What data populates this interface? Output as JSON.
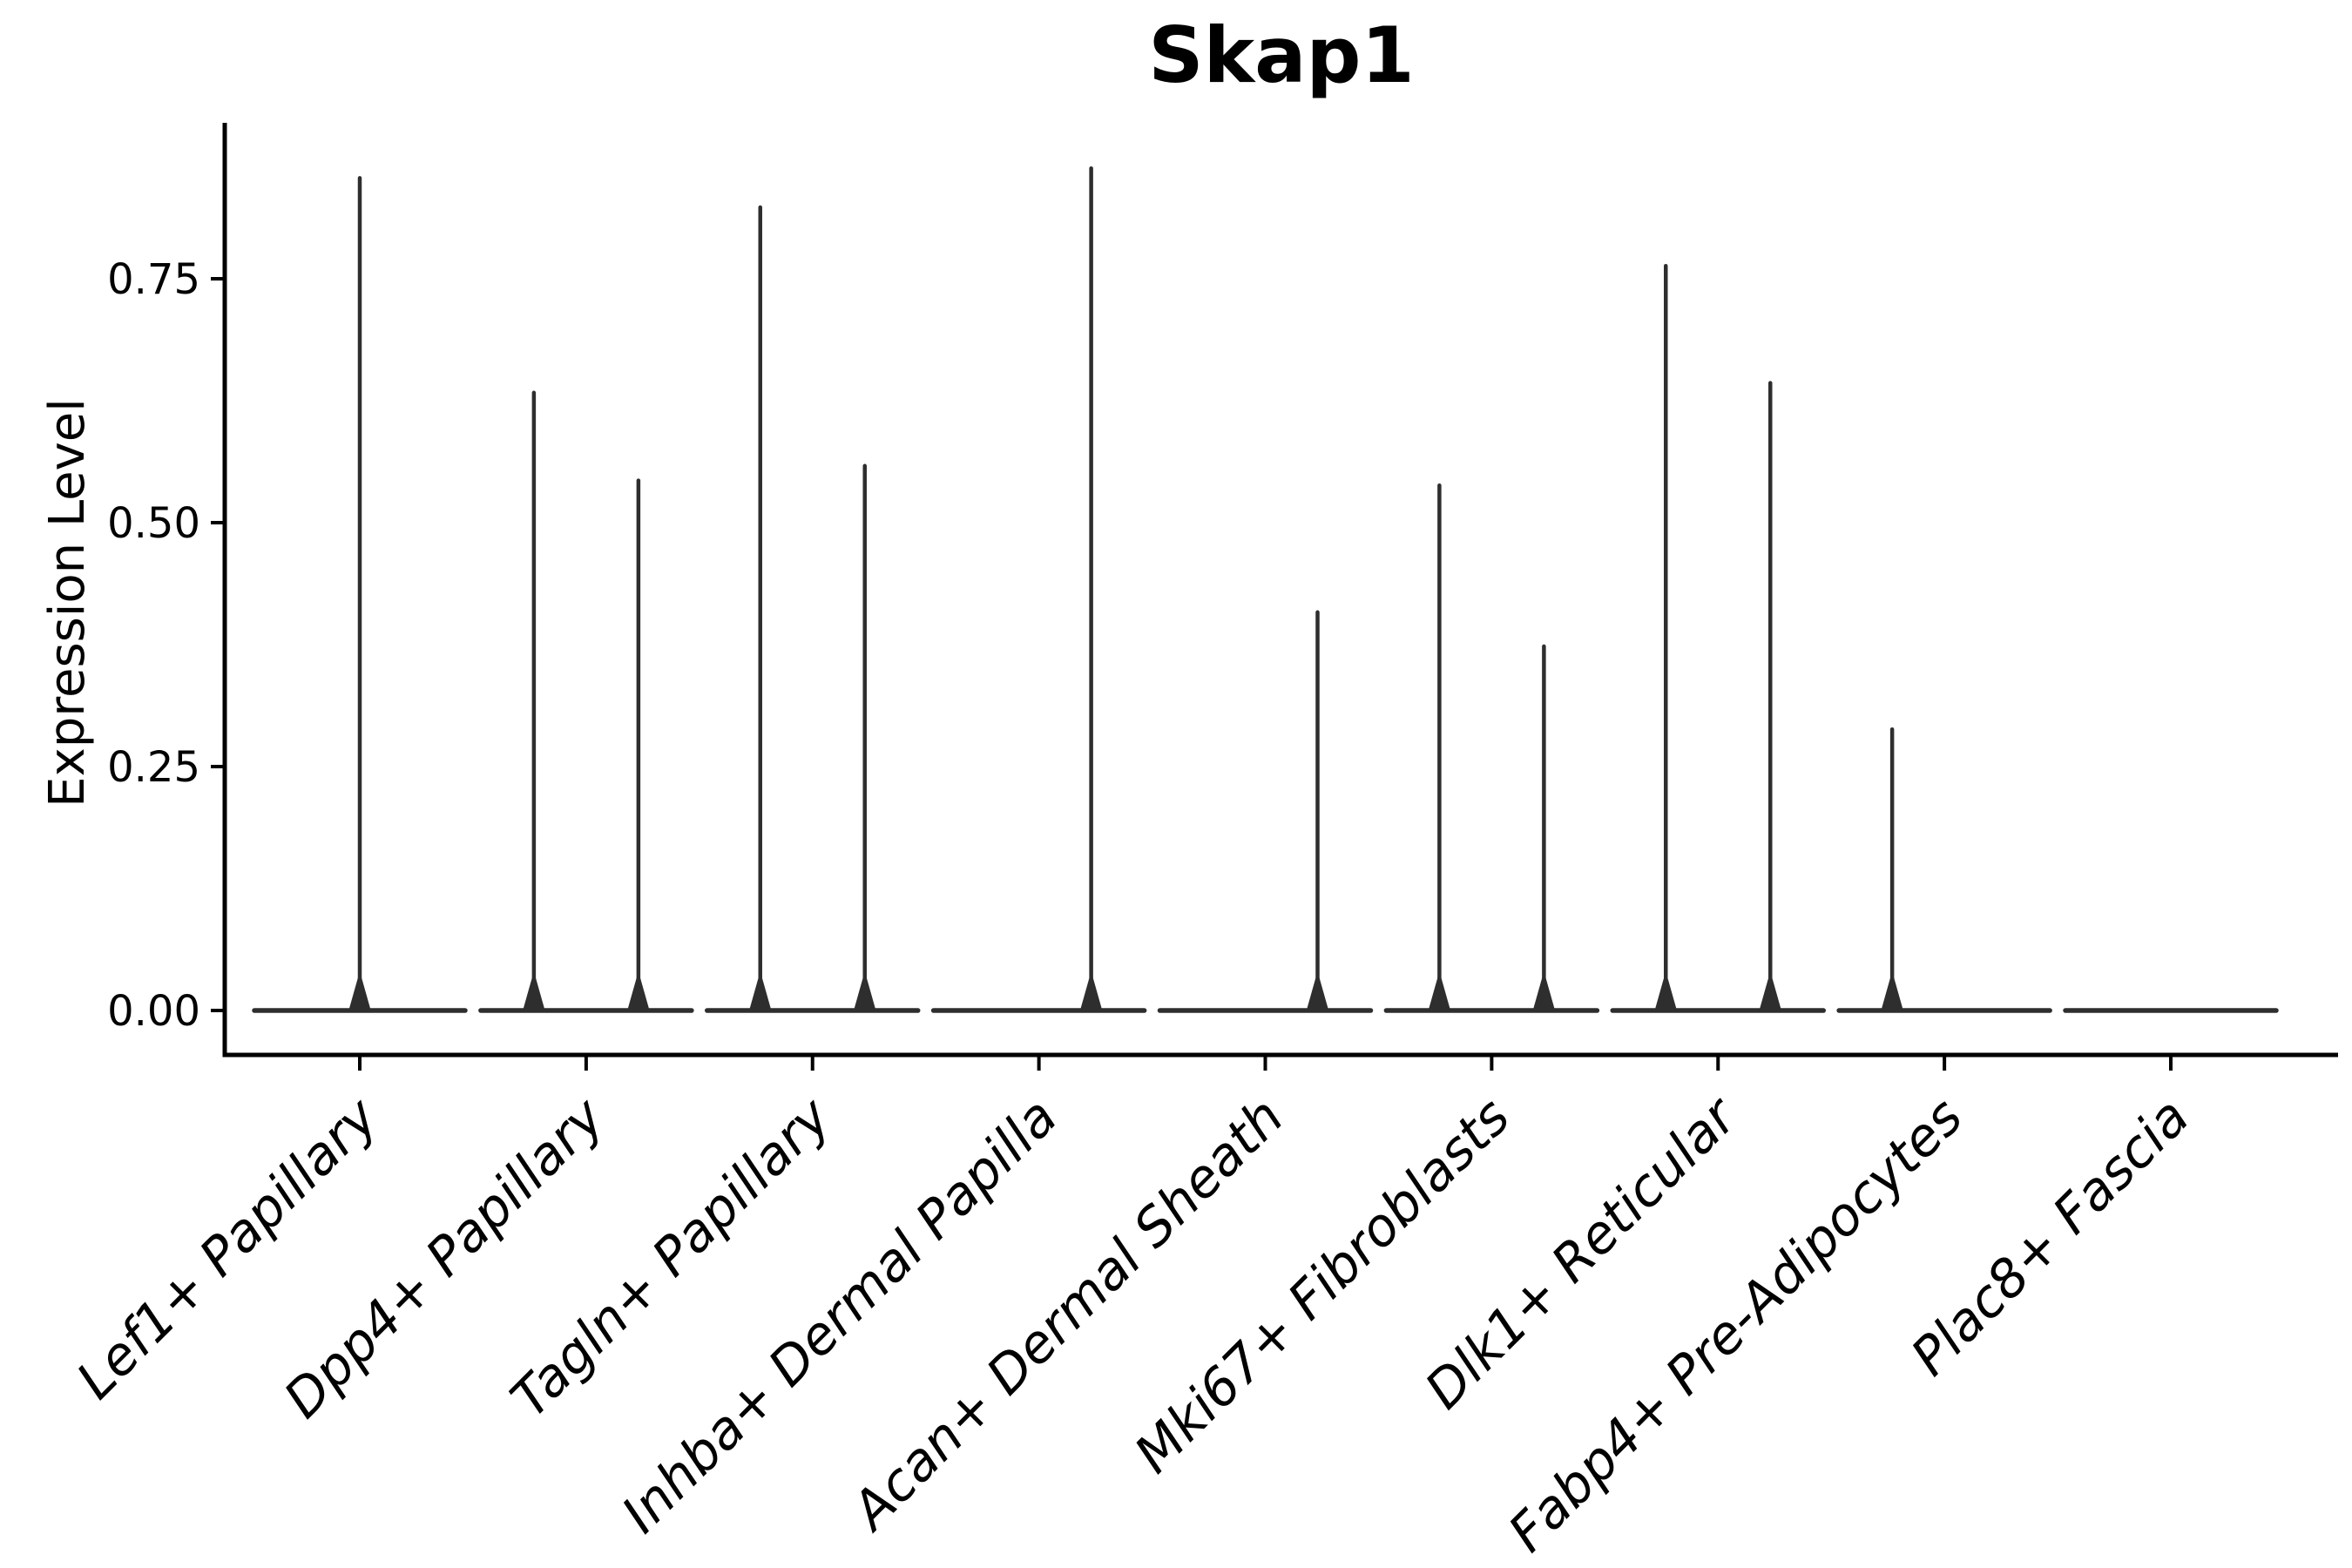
{
  "figure": {
    "title": "Skap1"
  },
  "chart_data": {
    "type": "violin",
    "title": "Skap1",
    "xlabel": "",
    "ylabel": "Expression Level",
    "categories": [
      "Lef1+ Papillary",
      "Dpp4+ Papillary",
      "Tagln+ Papillary",
      "Inhba+ Dermal Papilla",
      "Acan+ Dermal Sheath",
      "Mki67+ Fibroblasts",
      "Dlk1+ Reticular",
      "Fabp4+ Pre-Adipocytes",
      "Plac8+ Fascia"
    ],
    "ylim": [
      0,
      0.91
    ],
    "yticks": [
      0,
      0.25,
      0.5,
      0.75
    ],
    "ytick_labels": [
      "0.00",
      "0.25",
      "0.50",
      "0.75"
    ],
    "grid": false,
    "legend": "none",
    "x_label_rotation_deg": 45,
    "x_labels_italic": true,
    "description": "Each cell type shows a violin collapsed to a flat band at expression 0 plus narrow vertical spikes reaching the maximum expression; spikes sit at the violin center or at dodged left/right half positions.",
    "violins": [
      {
        "category": "Lef1+ Papillary",
        "zero_band": true,
        "spikes": [
          {
            "position": "center",
            "max": 0.855
          }
        ]
      },
      {
        "category": "Dpp4+ Papillary",
        "zero_band": true,
        "spikes": [
          {
            "position": "left",
            "max": 0.635
          },
          {
            "position": "right",
            "max": 0.545
          }
        ]
      },
      {
        "category": "Tagln+ Papillary",
        "zero_band": true,
        "spikes": [
          {
            "position": "left",
            "max": 0.825
          },
          {
            "position": "right",
            "max": 0.56
          }
        ]
      },
      {
        "category": "Inhba+ Dermal Papilla",
        "zero_band": true,
        "spikes": [
          {
            "position": "right",
            "max": 0.865
          }
        ]
      },
      {
        "category": "Acan+ Dermal Sheath",
        "zero_band": true,
        "spikes": [
          {
            "position": "right",
            "max": 0.41
          }
        ]
      },
      {
        "category": "Mki67+ Fibroblasts",
        "zero_band": true,
        "spikes": [
          {
            "position": "left",
            "max": 0.54
          },
          {
            "position": "right",
            "max": 0.375
          }
        ]
      },
      {
        "category": "Dlk1+ Reticular",
        "zero_band": true,
        "spikes": [
          {
            "position": "left",
            "max": 0.765
          },
          {
            "position": "right",
            "max": 0.645
          }
        ]
      },
      {
        "category": "Fabp4+ Pre-Adipocytes",
        "zero_band": true,
        "spikes": [
          {
            "position": "left",
            "max": 0.29
          }
        ]
      },
      {
        "category": "Plac8+ Fascia",
        "zero_band": true,
        "spikes": []
      }
    ],
    "colors": {
      "violin_line": "#2e2e2e",
      "axis": "#000000",
      "text": "#000000",
      "background": "#ffffff"
    }
  }
}
